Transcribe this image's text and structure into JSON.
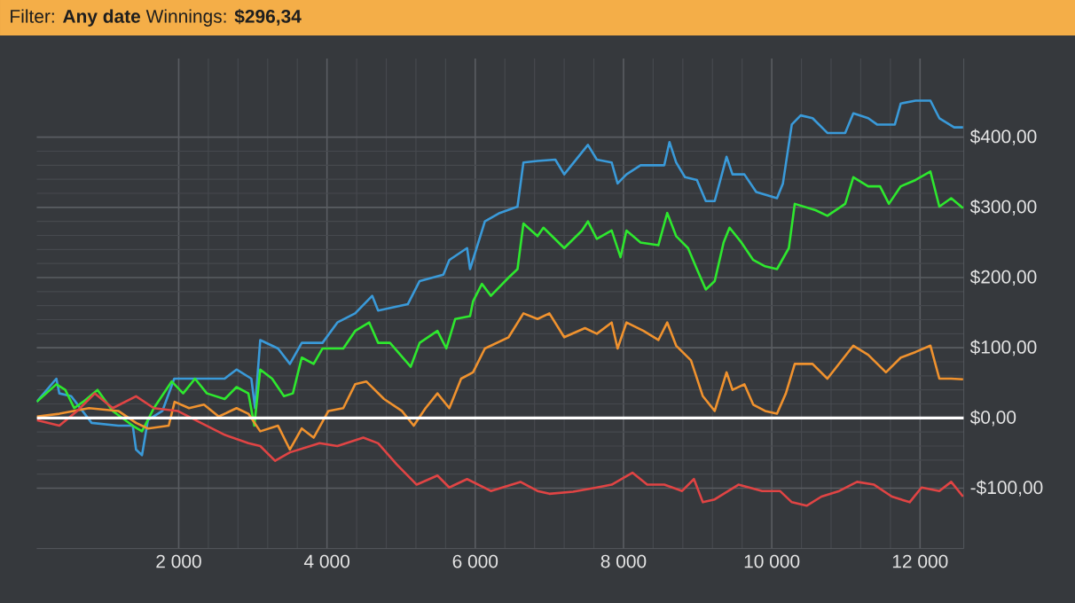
{
  "chart_data": {
    "type": "line",
    "title": "Filter: **Any date** Winnings: **$296,34**",
    "xlim": [
      85,
      12590
    ],
    "ylim": [
      -186,
      512
    ],
    "xticks": [
      {
        "value": 2000,
        "label": "2 000"
      },
      {
        "value": 4000,
        "label": "4 000"
      },
      {
        "value": 6000,
        "label": "6 000"
      },
      {
        "value": 8000,
        "label": "8 000"
      },
      {
        "value": 10000,
        "label": "10 000"
      },
      {
        "value": 12000,
        "label": "12 000"
      }
    ],
    "yticks": [
      {
        "value": -100,
        "label": "-$100,00"
      },
      {
        "value": 0,
        "label": "$0,00"
      },
      {
        "value": 100,
        "label": "$100,00"
      },
      {
        "value": 200,
        "label": "$200,00"
      },
      {
        "value": 300,
        "label": "$300,00"
      },
      {
        "value": 400,
        "label": "$400,00"
      }
    ],
    "grid": true,
    "marker": "none",
    "line_style": "solid",
    "ref_lines": [
      {
        "axis": "y",
        "value": 0,
        "color": "#ffffff"
      }
    ],
    "series": [
      {
        "color": "#3a9ad9",
        "x": [
          85,
          350,
          390,
          550,
          825,
          1185,
          1380,
          1425,
          1505,
          1585,
          1780,
          1940,
          2220,
          2620,
          2780,
          2980,
          3030,
          3100,
          3340,
          3500,
          3660,
          3940,
          4140,
          4380,
          4610,
          4690,
          5090,
          5250,
          5570,
          5650,
          5890,
          5930,
          6130,
          6330,
          6570,
          6650,
          6840,
          7080,
          7200,
          7520,
          7640,
          7840,
          7920,
          8040,
          8230,
          8550,
          8620,
          8710,
          8830,
          8990,
          9110,
          9230,
          9390,
          9470,
          9630,
          9790,
          10070,
          10150,
          10270,
          10390,
          10550,
          10750,
          10990,
          11100,
          11300,
          11420,
          11660,
          11740,
          11940,
          12140,
          12260,
          12460,
          12580
        ],
        "values": [
          23,
          56,
          35,
          31,
          -7,
          -11,
          -11,
          -45,
          -53,
          -3,
          10,
          56,
          56,
          56,
          69,
          56,
          14,
          111,
          99,
          77,
          107,
          107,
          136,
          149,
          174,
          153,
          162,
          195,
          204,
          225,
          242,
          212,
          280,
          292,
          301,
          364,
          366,
          368,
          347,
          389,
          368,
          364,
          334,
          347,
          360,
          360,
          393,
          364,
          343,
          339,
          309,
          309,
          372,
          347,
          347,
          322,
          313,
          334,
          418,
          431,
          427,
          406,
          406,
          434,
          427,
          418,
          418,
          448,
          452,
          452,
          427,
          414,
          414
        ]
      },
      {
        "color": "#2ee82e",
        "x": [
          85,
          350,
          470,
          590,
          710,
          905,
          1110,
          1380,
          1505,
          1665,
          1905,
          2060,
          2220,
          2380,
          2620,
          2780,
          2940,
          3020,
          3100,
          3260,
          3420,
          3540,
          3660,
          3820,
          3940,
          4220,
          4380,
          4570,
          4690,
          4850,
          5130,
          5250,
          5490,
          5610,
          5730,
          5930,
          5970,
          6090,
          6210,
          6450,
          6570,
          6650,
          6840,
          6920,
          7200,
          7440,
          7520,
          7640,
          7840,
          7960,
          8040,
          8230,
          8470,
          8590,
          8710,
          8870,
          8990,
          9110,
          9230,
          9350,
          9430,
          9590,
          9750,
          9910,
          10070,
          10230,
          10310,
          10590,
          10750,
          10990,
          11100,
          11300,
          11460,
          11580,
          11740,
          11940,
          12140,
          12260,
          12420,
          12580
        ],
        "values": [
          23,
          48,
          40,
          14,
          23,
          40,
          10,
          -11,
          -19,
          14,
          52,
          35,
          56,
          35,
          27,
          44,
          35,
          -11,
          69,
          56,
          31,
          35,
          86,
          77,
          99,
          99,
          124,
          136,
          107,
          107,
          73,
          107,
          124,
          99,
          141,
          145,
          166,
          191,
          174,
          200,
          212,
          277,
          259,
          271,
          242,
          267,
          280,
          255,
          267,
          229,
          267,
          250,
          246,
          292,
          259,
          242,
          212,
          183,
          195,
          250,
          271,
          250,
          225,
          216,
          212,
          242,
          305,
          296,
          288,
          305,
          343,
          330,
          330,
          305,
          330,
          339,
          351,
          301,
          313,
          299
        ]
      },
      {
        "color": "#f0922e",
        "x": [
          85,
          390,
          790,
          1185,
          1425,
          1585,
          1865,
          1945,
          2140,
          2340,
          2540,
          2780,
          2940,
          3100,
          3340,
          3500,
          3660,
          3820,
          4020,
          4220,
          4380,
          4530,
          4770,
          5010,
          5170,
          5330,
          5490,
          5650,
          5810,
          5970,
          6130,
          6450,
          6650,
          6840,
          7000,
          7200,
          7480,
          7640,
          7840,
          7920,
          8040,
          8270,
          8470,
          8590,
          8710,
          8910,
          9070,
          9230,
          9390,
          9470,
          9630,
          9750,
          9910,
          10070,
          10190,
          10310,
          10550,
          10750,
          11100,
          11300,
          11540,
          11740,
          11940,
          12140,
          12260,
          12420,
          12580
        ],
        "values": [
          2,
          6,
          14,
          10,
          -7,
          -15,
          -11,
          23,
          14,
          19,
          2,
          14,
          6,
          -19,
          -11,
          -45,
          -15,
          -28,
          10,
          14,
          48,
          52,
          27,
          10,
          -11,
          14,
          35,
          14,
          56,
          65,
          99,
          115,
          149,
          141,
          149,
          115,
          128,
          120,
          136,
          99,
          136,
          124,
          111,
          136,
          103,
          82,
          31,
          10,
          65,
          40,
          48,
          19,
          10,
          6,
          35,
          77,
          77,
          56,
          103,
          90,
          65,
          86,
          94,
          103,
          56,
          56,
          55
        ]
      },
      {
        "color": "#e04444",
        "x": [
          85,
          390,
          630,
          870,
          1110,
          1425,
          1665,
          1985,
          2300,
          2620,
          2940,
          3100,
          3300,
          3500,
          3900,
          4140,
          4490,
          4690,
          4940,
          5210,
          5490,
          5650,
          5890,
          6210,
          6610,
          6840,
          7000,
          7320,
          7640,
          7840,
          8120,
          8320,
          8550,
          8790,
          8950,
          9070,
          9230,
          9550,
          9870,
          10110,
          10270,
          10470,
          10670,
          10910,
          11150,
          11380,
          11620,
          11860,
          12020,
          12260,
          12420,
          12580
        ],
        "values": [
          -3,
          -11,
          10,
          35,
          14,
          31,
          14,
          10,
          -7,
          -24,
          -36,
          -40,
          -61,
          -49,
          -36,
          -40,
          -28,
          -36,
          -66,
          -95,
          -82,
          -99,
          -87,
          -104,
          -91,
          -104,
          -108,
          -105,
          -99,
          -95,
          -78,
          -95,
          -95,
          -104,
          -87,
          -120,
          -116,
          -95,
          -104,
          -104,
          -120,
          -125,
          -112,
          -104,
          -91,
          -95,
          -112,
          -120,
          -99,
          -104,
          -91,
          -112
        ]
      }
    ]
  }
}
